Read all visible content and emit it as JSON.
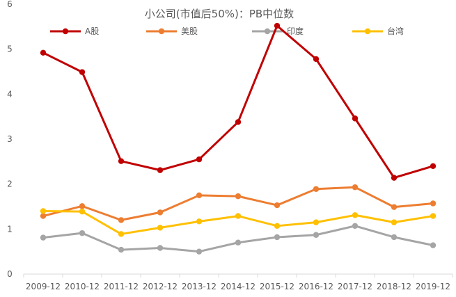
{
  "chart_data": {
    "type": "line",
    "title": "小公司(市值后50%)：PB中位数",
    "categories": [
      "2009-12",
      "2010-12",
      "2011-12",
      "2012-12",
      "2013-12",
      "2014-12",
      "2015-12",
      "2016-12",
      "2017-12",
      "2018-12",
      "2019-12"
    ],
    "yticks": [
      "0",
      "1",
      "2",
      "3",
      "4",
      "5",
      "6"
    ],
    "ylim": [
      0,
      6
    ],
    "grid": false,
    "legend_position": "top",
    "series": [
      {
        "name": "A股",
        "color": "#C00000",
        "values": [
          4.92,
          4.49,
          2.51,
          2.31,
          2.55,
          3.38,
          5.52,
          4.78,
          3.46,
          2.14,
          2.4
        ]
      },
      {
        "name": "美股",
        "color": "#ED7D31",
        "values": [
          1.29,
          1.51,
          1.2,
          1.37,
          1.75,
          1.73,
          1.53,
          1.89,
          1.93,
          1.49,
          1.57
        ]
      },
      {
        "name": "印度",
        "color": "#A5A5A5",
        "values": [
          0.81,
          0.91,
          0.54,
          0.58,
          0.5,
          0.7,
          0.82,
          0.87,
          1.07,
          0.82,
          0.64
        ]
      },
      {
        "name": "台湾",
        "color": "#FFC000",
        "values": [
          1.4,
          1.39,
          0.89,
          1.03,
          1.17,
          1.29,
          1.07,
          1.15,
          1.31,
          1.15,
          1.29
        ]
      }
    ]
  }
}
